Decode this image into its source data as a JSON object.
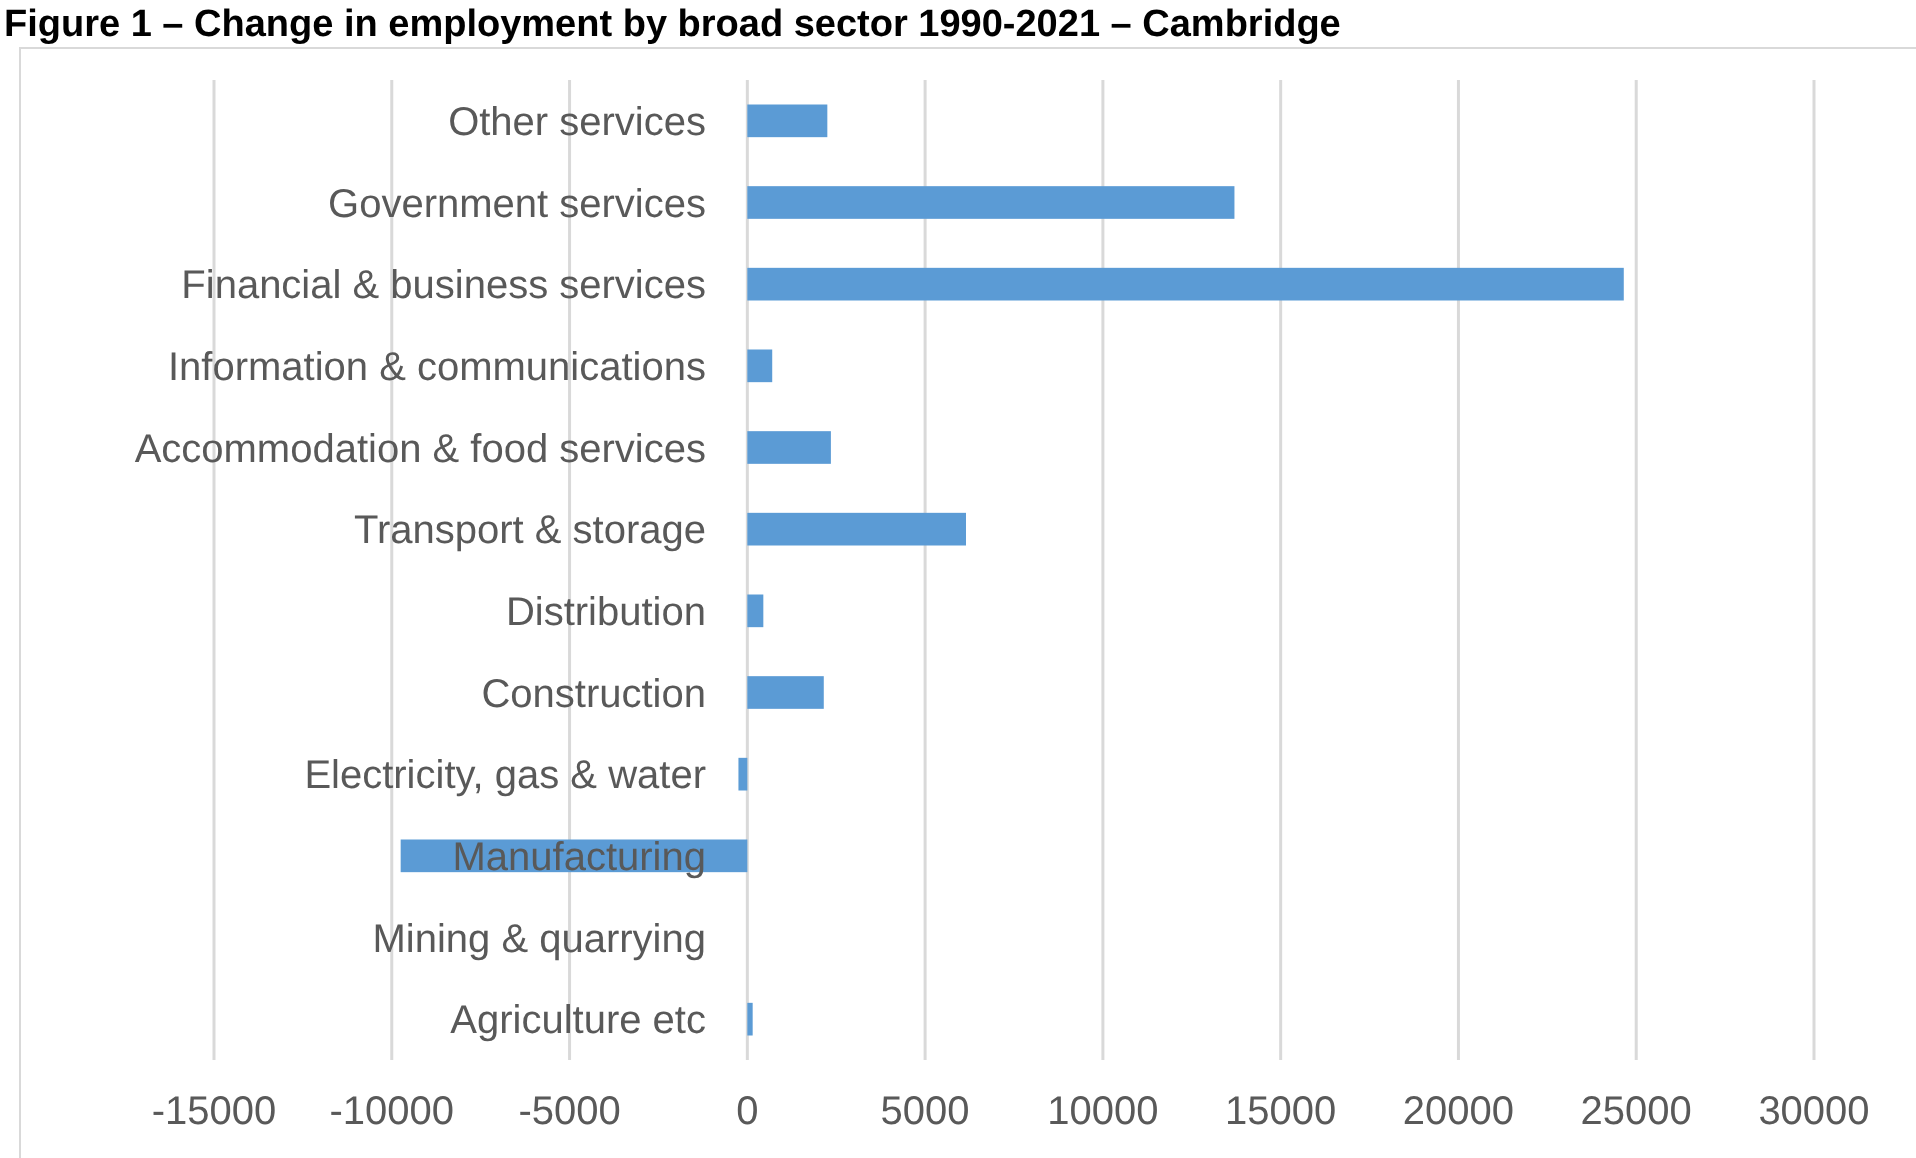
{
  "chart_data": {
    "type": "bar",
    "orientation": "horizontal",
    "title": "Figure 1 – Change in employment by broad sector 1990-2021 – Cambridge",
    "categories": [
      "Other services",
      "Government services",
      "Financial & business services",
      "Information & communications",
      "Accommodation & food services",
      "Transport & storage",
      "Distribution",
      "Construction",
      "Electricity, gas & water",
      "Manufacturing",
      "Mining & quarrying",
      "Agriculture etc"
    ],
    "values": [
      2250,
      13700,
      24650,
      700,
      2350,
      6150,
      450,
      2150,
      -250,
      -9750,
      0,
      150
    ],
    "color": "#5b9bd5",
    "xlim": [
      -15000,
      30000
    ],
    "xticks": [
      -15000,
      -10000,
      -5000,
      0,
      5000,
      10000,
      15000,
      20000,
      25000,
      30000
    ],
    "grid": "x"
  }
}
